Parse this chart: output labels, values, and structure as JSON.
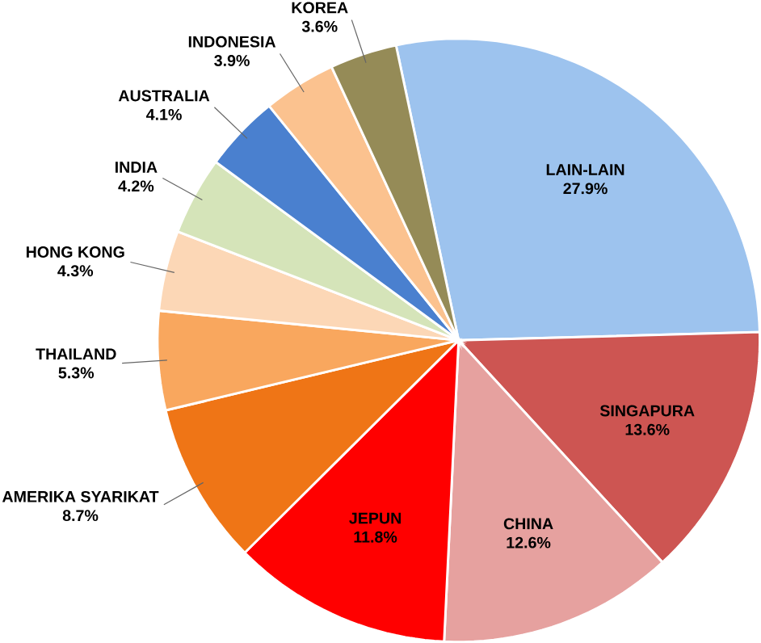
{
  "chart_data": {
    "type": "pie",
    "categories": [
      "LAIN-LAIN",
      "SINGAPURA",
      "CHINA",
      "JEPUN",
      "AMERIKA SYARIKAT",
      "THAILAND",
      "HONG KONG",
      "INDIA",
      "AUSTRALIA",
      "INDONESIA",
      "KOREA"
    ],
    "values": [
      27.9,
      13.6,
      12.6,
      11.8,
      8.7,
      5.3,
      4.3,
      4.2,
      4.1,
      3.9,
      3.6
    ],
    "value_labels": [
      "27.9%",
      "13.6%",
      "12.6%",
      "11.8%",
      "8.7%",
      "5.3%",
      "4.3%",
      "4.2%",
      "4.1%",
      "3.9%",
      "3.6%"
    ],
    "colors": [
      "#9dc3ee",
      "#cd5552",
      "#e6a19f",
      "#ff0000",
      "#ef7516",
      "#f9a75e",
      "#fcd7b6",
      "#d5e4b9",
      "#4a80cf",
      "#fbc28f",
      "#958b57"
    ]
  }
}
